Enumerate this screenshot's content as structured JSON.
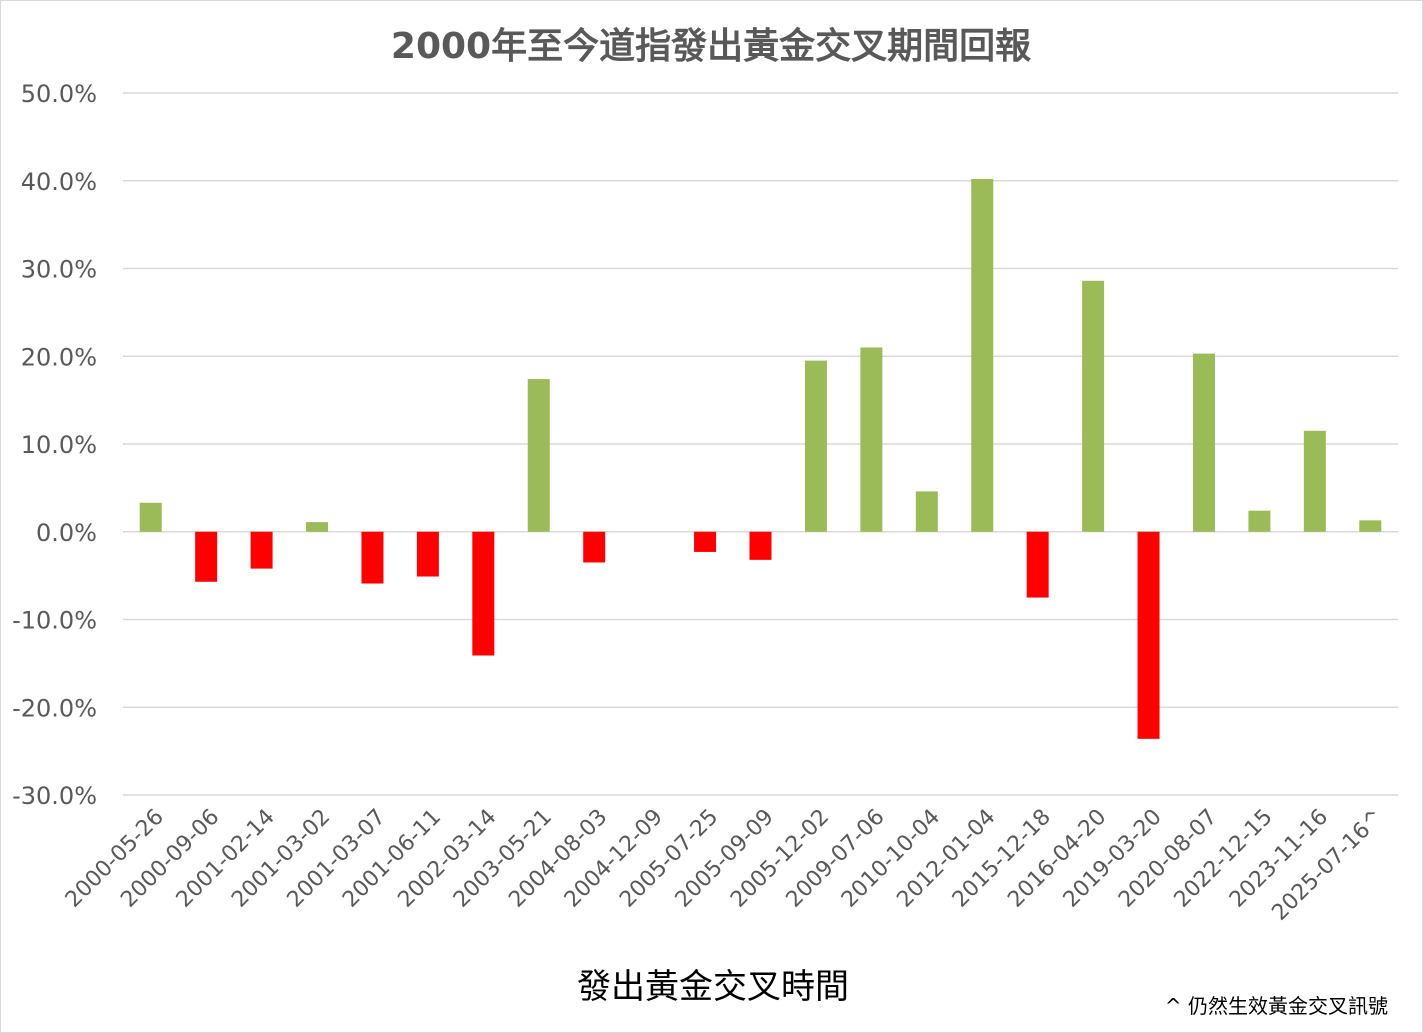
{
  "chart_data": {
    "type": "bar",
    "title": "2000年至今道指發出黃金交叉期間回報",
    "xlabel": "發出黃金交叉時間",
    "ylabel": "",
    "footnote": "^ 仍然生效黃金交叉訊號",
    "ylim": [
      -30,
      50
    ],
    "yticks": [
      50,
      40,
      30,
      20,
      10,
      0,
      -10,
      -20,
      -30
    ],
    "ytick_labels": [
      "50.0%",
      "40.0%",
      "30.0%",
      "20.0%",
      "10.0%",
      "0.0%",
      "-10.0%",
      "-20.0%",
      "-30.0%"
    ],
    "grid": true,
    "positive_color": "#9bbb59",
    "negative_color": "#ff0000",
    "categories": [
      "2000-05-26",
      "2000-09-06",
      "2001-02-14",
      "2001-03-02",
      "2001-03-07",
      "2001-06-11",
      "2002-03-14",
      "2003-05-21",
      "2004-08-03",
      "2004-12-09",
      "2005-07-25",
      "2005-09-09",
      "2005-12-02",
      "2009-07-06",
      "2010-10-04",
      "2012-01-04",
      "2015-12-18",
      "2016-04-20",
      "2019-03-20",
      "2020-08-07",
      "2022-12-15",
      "2023-11-16",
      "2025-07-16^"
    ],
    "values": [
      3.3,
      -5.7,
      -4.2,
      1.1,
      -5.9,
      -5.1,
      -14.1,
      17.4,
      -3.5,
      0.0,
      -2.3,
      -3.2,
      19.5,
      21.0,
      4.6,
      40.2,
      -7.5,
      28.6,
      -23.6,
      20.3,
      2.4,
      11.5,
      1.3
    ]
  }
}
